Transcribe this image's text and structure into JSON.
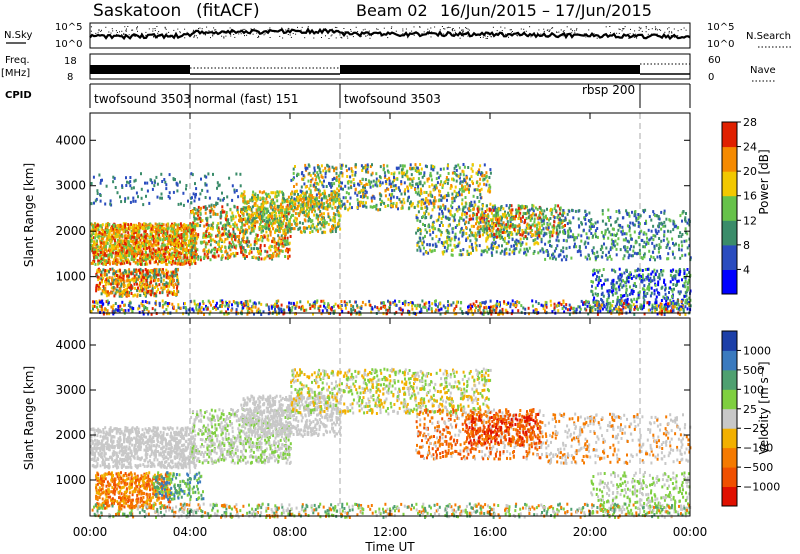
{
  "header": {
    "radar": "Saskatoon",
    "processing": "(fitACF)",
    "beam": "Beam 02",
    "date_range": "16/Jun/2015 – 17/Jun/2015"
  },
  "side_labels": {
    "nsky": "N.Sky",
    "nsearch": "N.Search",
    "freq": "Freq.",
    "freq_unit": "[MHz]",
    "nave": "Nave",
    "cpid": "CPID"
  },
  "scales": {
    "noise_top": "10^5",
    "noise_bottom": "10^0",
    "freq_top": "18",
    "freq_bottom": "8",
    "nave_top": "60",
    "nave_bottom": "0"
  },
  "cpid_segments": [
    {
      "label": "twofsound 3503",
      "start_hour": 0
    },
    {
      "label": "normal (fast) 151",
      "start_hour": 4
    },
    {
      "label": "twofsound 3503",
      "start_hour": 10
    },
    {
      "label": "rbsp 200",
      "start_hour": 22
    }
  ],
  "chart_data": [
    {
      "type": "heatmap",
      "quantity": "Power",
      "xlabel": "",
      "ylabel": "Slant Range [km]",
      "xlim_hours": [
        0,
        24
      ],
      "ylim": [
        200,
        4600
      ],
      "yticks": [
        "1000",
        "2000",
        "3000",
        "4000"
      ],
      "colorbar": {
        "label": "Power [dB]",
        "ticks": [
          "4",
          "8",
          "12",
          "16",
          "20",
          "24",
          "28"
        ],
        "colors": [
          "#0000ff",
          "#2a4cbf",
          "#3a8c6a",
          "#66c24a",
          "#f2c800",
          "#f58a00",
          "#e02000"
        ]
      }
    },
    {
      "type": "heatmap",
      "quantity": "Velocity",
      "xlabel": "Time UT",
      "ylabel": "Slant Range [km]",
      "xlim_hours": [
        0,
        24
      ],
      "ylim": [
        200,
        4600
      ],
      "yticks": [
        "1000",
        "2000",
        "3000",
        "4000"
      ],
      "xticks": [
        "00:00",
        "04:00",
        "08:00",
        "12:00",
        "16:00",
        "20:00",
        "00:00"
      ],
      "colorbar": {
        "label": "Velocity [m s⁻¹]",
        "ticks": [
          "1000",
          "500",
          "100",
          "25",
          "−25",
          "−100",
          "−500",
          "−1000"
        ],
        "colors": [
          "#1c3fa8",
          "#3a7abf",
          "#4fa070",
          "#7fcf40",
          "#c8c8c8",
          "#f2b000",
          "#f57a00",
          "#f05000",
          "#e01000"
        ]
      }
    }
  ]
}
